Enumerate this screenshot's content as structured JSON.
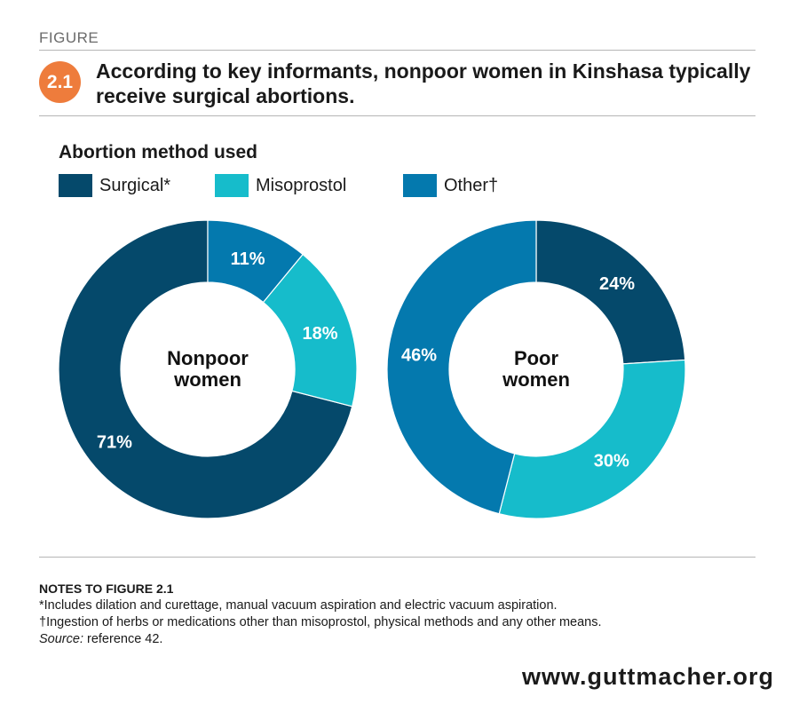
{
  "header": {
    "kicker": "FIGURE",
    "number": "2.1",
    "title": "According to key informants, nonpoor women in Kinshasa typically receive surgical abortions."
  },
  "legend": {
    "title": "Abortion method used",
    "items": [
      {
        "label": "Surgical*",
        "color": "#05496b"
      },
      {
        "label": "Misoprostol",
        "color": "#16bccb"
      },
      {
        "label": "Other†",
        "color": "#0479ae"
      }
    ]
  },
  "chart_data": [
    {
      "type": "pie",
      "center_label": [
        "Nonpoor",
        "women"
      ],
      "categories": [
        "Surgical*",
        "Misoprostol",
        "Other†"
      ],
      "values": [
        71,
        18,
        11
      ],
      "data_labels": [
        "71%",
        "18%",
        "11%"
      ],
      "colors": [
        "#05496b",
        "#16bccb",
        "#0479ae"
      ],
      "style": "donut"
    },
    {
      "type": "pie",
      "center_label": [
        "Poor",
        "women"
      ],
      "categories": [
        "Surgical*",
        "Misoprostol",
        "Other†"
      ],
      "values": [
        24,
        30,
        46
      ],
      "data_labels": [
        "24%",
        "30%",
        "46%"
      ],
      "colors": [
        "#05496b",
        "#16bccb",
        "#0479ae"
      ],
      "style": "donut"
    }
  ],
  "notes": {
    "heading": "NOTES TO FIGURE 2.1",
    "lines": [
      "*Includes dilation and curettage, manual vacuum aspiration and electric vacuum aspiration.",
      "†Ingestion of herbs or medications other than misoprostol, physical methods and any other means."
    ],
    "source_label": "Source:",
    "source_text": " reference 42."
  },
  "footer": {
    "website": "www.guttmacher.org"
  }
}
